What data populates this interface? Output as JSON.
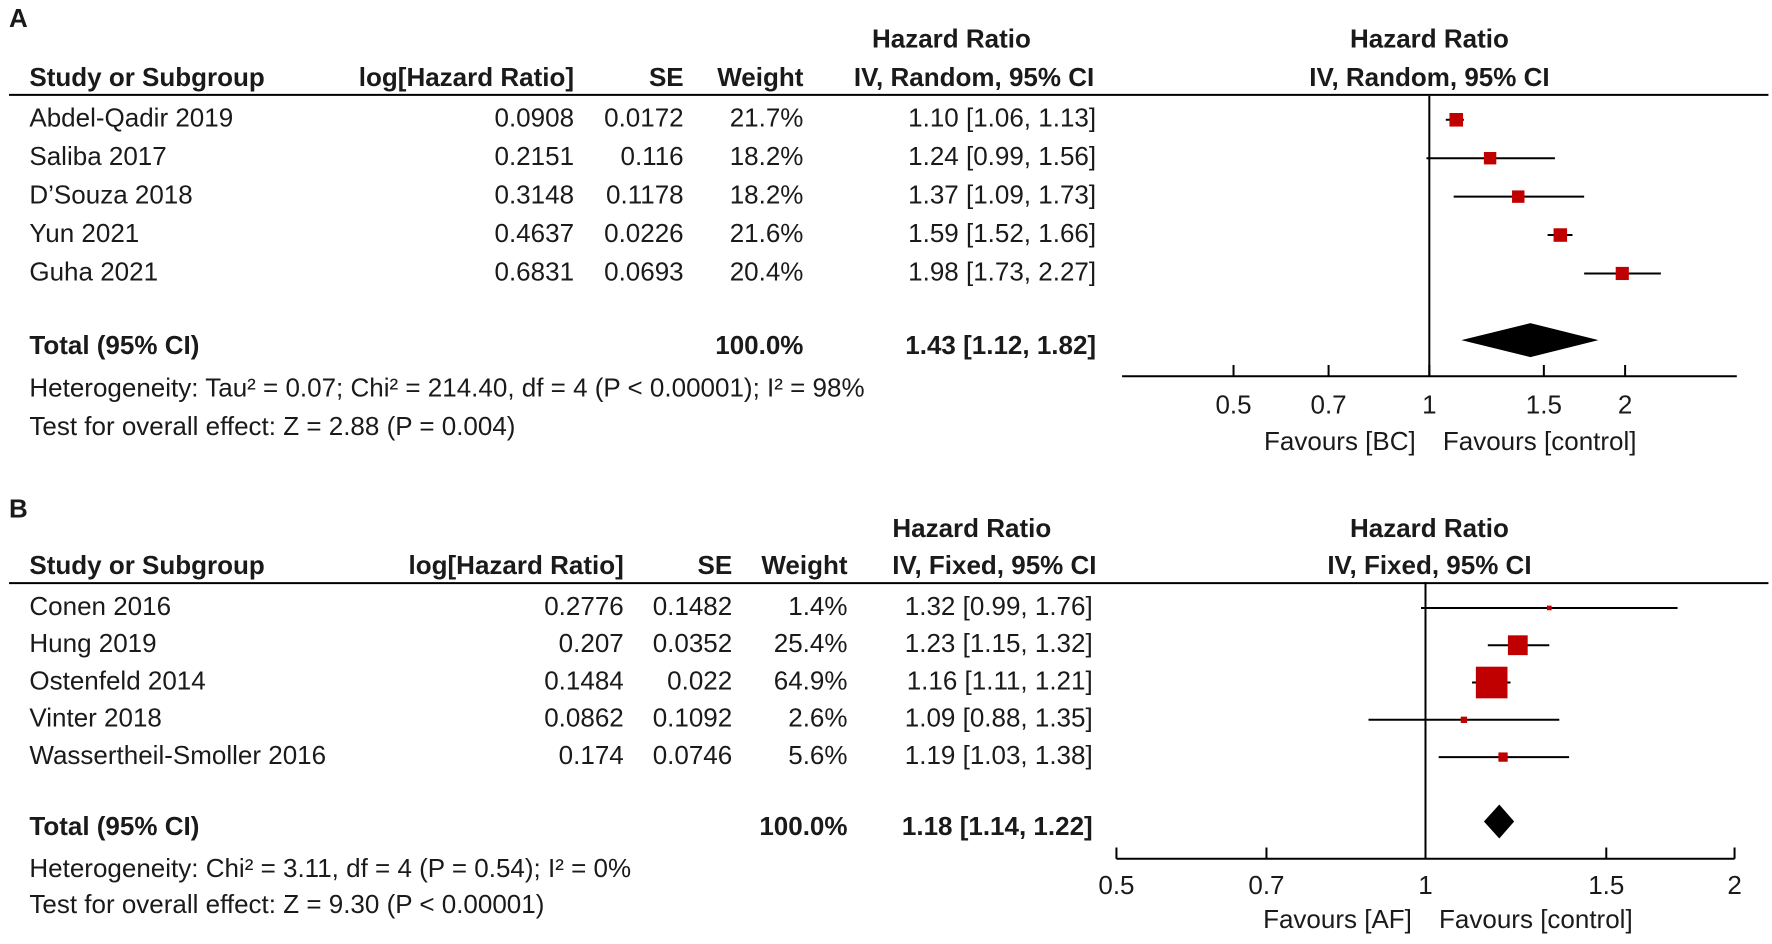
{
  "chart_data": [
    {
      "type": "forest",
      "panel_label": "A",
      "columns": [
        "Study or Subgroup",
        "log[Hazard Ratio]",
        "SE",
        "Weight"
      ],
      "effect_title": "Hazard Ratio",
      "effect_method": "IV, Random, 95% CI",
      "categories": [
        "Abdel-Qadir 2019",
        "Saliba 2017",
        "D’Souza 2018",
        "Yun 2021",
        "Guha 2021"
      ],
      "log_hr": [
        0.0908,
        0.2151,
        0.3148,
        0.4637,
        0.6831
      ],
      "se": [
        0.0172,
        0.116,
        0.1178,
        0.0226,
        0.0693
      ],
      "weights": [
        21.7,
        18.2,
        18.2,
        21.6,
        20.4
      ],
      "weight_labels": [
        "21.7%",
        "18.2%",
        "18.2%",
        "21.6%",
        "20.4%"
      ],
      "values": [
        1.1,
        1.24,
        1.37,
        1.59,
        1.98
      ],
      "ci_low": [
        1.06,
        0.99,
        1.09,
        1.52,
        1.73
      ],
      "ci_high": [
        1.13,
        1.56,
        1.73,
        1.66,
        2.27
      ],
      "value_labels": [
        "1.10 [1.06, 1.13]",
        "1.24 [0.99, 1.56]",
        "1.37 [1.09, 1.73]",
        "1.59 [1.52, 1.66]",
        "1.98 [1.73, 2.27]"
      ],
      "total_label": "Total (95% CI)",
      "total_weight_label": "100.0%",
      "total_value": 1.43,
      "total_ci_low": 1.12,
      "total_ci_high": 1.82,
      "total_value_label": "1.43 [1.12, 1.82]",
      "heterogeneity": "Heterogeneity: Tau² = 0.07; Chi² = 214.40, df = 4 (P < 0.00001); I² = 98%",
      "overall_test": "Test for overall effect: Z = 2.88 (P = 0.004)",
      "log_scale": true,
      "xlim": [
        0.337,
        2.97
      ],
      "xticks": [
        0.5,
        0.7,
        1,
        1.5,
        2
      ],
      "favours_left": "Favours [BC]",
      "favours_right": "Favours [control]",
      "color": "#c00000"
    },
    {
      "type": "forest",
      "panel_label": "B",
      "columns": [
        "Study or Subgroup",
        "log[Hazard Ratio]",
        "SE",
        "Weight"
      ],
      "effect_title": "Hazard Ratio",
      "effect_method": "IV, Fixed, 95% CI",
      "categories": [
        "Conen 2016",
        "Hung 2019",
        "Ostenfeld 2014",
        "Vinter 2018",
        "Wassertheil-Smoller 2016"
      ],
      "log_hr": [
        0.2776,
        0.207,
        0.1484,
        0.0862,
        0.174
      ],
      "se": [
        0.1482,
        0.0352,
        0.022,
        0.1092,
        0.0746
      ],
      "weights": [
        1.4,
        25.4,
        64.9,
        2.6,
        5.6
      ],
      "weight_labels": [
        "1.4%",
        "25.4%",
        "64.9%",
        "2.6%",
        "5.6%"
      ],
      "values": [
        1.32,
        1.23,
        1.16,
        1.09,
        1.19
      ],
      "ci_low": [
        0.99,
        1.15,
        1.11,
        0.88,
        1.03
      ],
      "ci_high": [
        1.76,
        1.32,
        1.21,
        1.35,
        1.38
      ],
      "value_labels": [
        "1.32 [0.99, 1.76]",
        "1.23 [1.15, 1.32]",
        "1.16 [1.11, 1.21]",
        "1.09 [0.88, 1.35]",
        "1.19 [1.03, 1.38]"
      ],
      "total_label": "Total (95% CI)",
      "total_weight_label": "100.0%",
      "total_value": 1.18,
      "total_ci_low": 1.14,
      "total_ci_high": 1.22,
      "total_value_label": "1.18 [1.14, 1.22]",
      "heterogeneity": "Heterogeneity: Chi² = 3.11, df = 4 (P = 0.54); I² = 0%",
      "overall_test": "Test for overall effect: Z = 9.30 (P < 0.00001)",
      "log_scale": true,
      "xlim": [
        0.5,
        2
      ],
      "xticks": [
        0.5,
        0.7,
        1,
        1.5,
        2
      ],
      "favours_left": "Favours [AF]",
      "favours_right": "Favours [control]",
      "color": "#c00000"
    }
  ]
}
